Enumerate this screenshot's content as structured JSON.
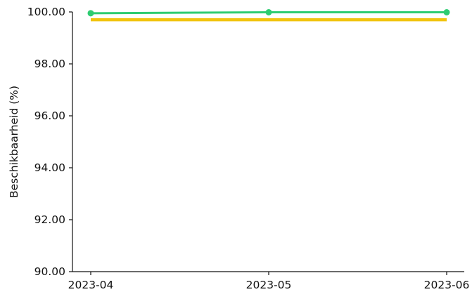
{
  "chart_data": {
    "type": "line",
    "x": [
      "2023-04",
      "2023-05",
      "2023-06"
    ],
    "series": [
      {
        "values": [
          99.95,
          100.0,
          100.0
        ],
        "color": "#2ecc71",
        "markers": true
      },
      {
        "values": [
          99.7,
          99.7,
          99.7
        ],
        "color": "#f1c40f",
        "markers": false
      }
    ],
    "ylabel": "Beschikbaarheid (%)",
    "ylim": [
      90.0,
      100.0
    ],
    "yticks": [
      "90.00",
      "92.00",
      "94.00",
      "96.00",
      "98.00",
      "100.00"
    ],
    "grid": false,
    "legend": "none"
  }
}
